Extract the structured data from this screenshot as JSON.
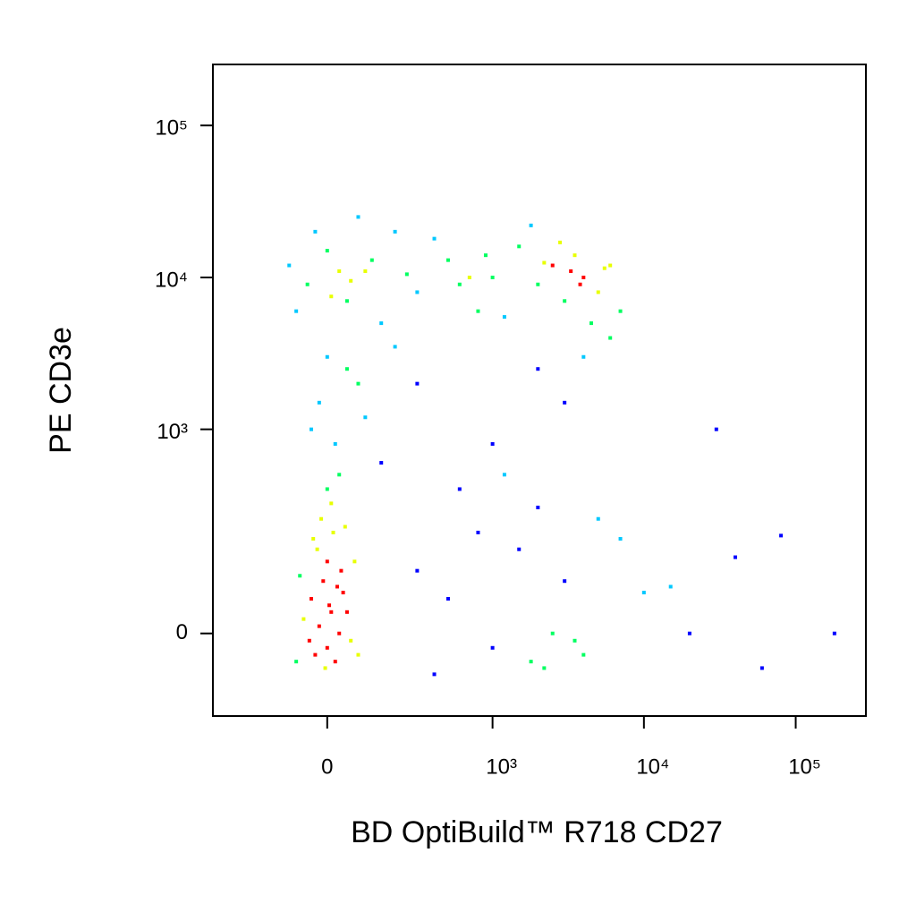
{
  "chart_data": {
    "type": "scatter",
    "x_label": "BD OptiBuild™ R718 CD27",
    "y_label": "PE CD3e",
    "xscale": "biexponential",
    "yscale": "biexponential",
    "xlim": [
      -450,
      290000
    ],
    "ylim": [
      -146,
      252000
    ],
    "xticks": [
      0,
      {
        "value": 1000,
        "label": "10³"
      },
      {
        "value": 10000,
        "label": "10⁴"
      },
      {
        "value": 100000,
        "label": "10⁵"
      }
    ],
    "yticks": [
      0,
      {
        "value": 1000,
        "label": "10³"
      },
      {
        "value": 10000,
        "label": "10⁴"
      },
      {
        "value": 100000,
        "label": "10⁵"
      }
    ],
    "colormap": [
      "#0000ff",
      "#00c8ff",
      "#00ff60",
      "#e8ff00",
      "#ff0000"
    ],
    "x": [
      -20,
      0,
      10,
      -40,
      30,
      -10,
      20,
      -30,
      40,
      0,
      -60,
      60,
      15,
      -25,
      35,
      -5,
      50,
      -45,
      5,
      25,
      -15,
      10,
      -35,
      45,
      70,
      -70,
      80,
      -80,
      0,
      30,
      -100,
      -50,
      0,
      50,
      100,
      200,
      300,
      500,
      800,
      1000,
      1500,
      2000,
      2500,
      3000,
      3500,
      4000,
      5000,
      6000,
      -30,
      80,
      150,
      400,
      700,
      1200,
      1800,
      2800,
      4500,
      7000,
      3300,
      600,
      -80,
      30,
      120,
      60,
      10,
      250,
      900,
      2200,
      3800,
      5500,
      20,
      -20,
      50,
      100,
      0,
      200,
      300,
      2000,
      4000,
      6000,
      1000,
      3000,
      150,
      -40,
      80,
      300,
      500,
      800,
      1000,
      1500,
      2000,
      2500,
      3000,
      4000,
      5000,
      600,
      1200,
      2200,
      3500,
      10000,
      20000,
      40000,
      80000,
      60000,
      180000,
      30000,
      7000,
      15000,
      400,
      1800
    ],
    "y": [
      10,
      -20,
      30,
      50,
      0,
      80,
      -40,
      -30,
      60,
      120,
      20,
      -10,
      200,
      150,
      100,
      -50,
      30,
      -10,
      40,
      70,
      250,
      320,
      180,
      220,
      120,
      90,
      -30,
      -40,
      400,
      500,
      12000,
      9000,
      15000,
      7000,
      11000,
      20000,
      8000,
      13000,
      6000,
      10000,
      16000,
      9000,
      12000,
      7000,
      14000,
      10000,
      8000,
      12000,
      20000,
      25000,
      5000,
      18000,
      10000,
      5500,
      22000,
      17000,
      5000,
      6000,
      11000,
      9000,
      6000,
      11000,
      13000,
      9500,
      7500,
      10500,
      14000,
      12500,
      9000,
      11500,
      800,
      1500,
      2500,
      1200,
      3000,
      3500,
      2000,
      2500,
      3000,
      4000,
      800,
      1500,
      600,
      1000,
      2000,
      100,
      50,
      200,
      -20,
      150,
      300,
      0,
      80,
      -30,
      250,
      400,
      500,
      -50,
      -10,
      60,
      0,
      130,
      190,
      -50,
      0,
      1000,
      180,
      70,
      -60,
      -40
    ]
  }
}
